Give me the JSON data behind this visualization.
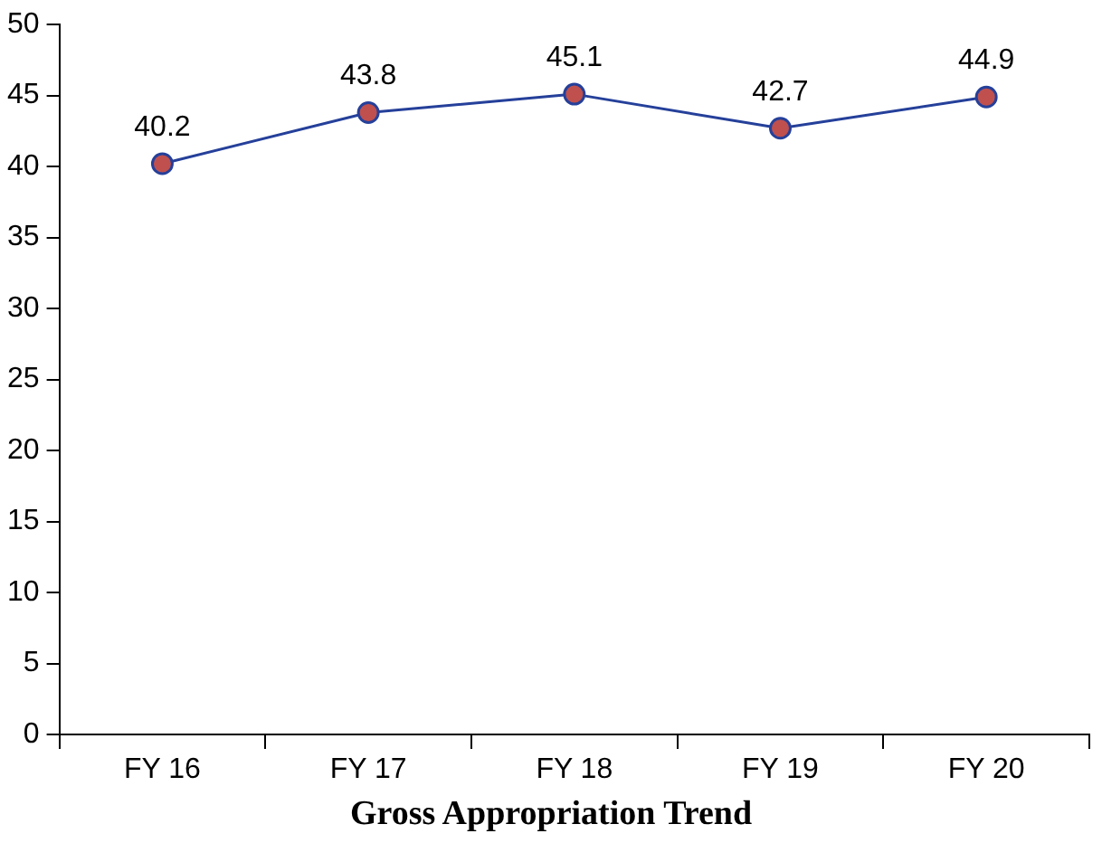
{
  "chart_data": {
    "type": "line",
    "title": "Gross Appropriation Trend",
    "categories": [
      "FY 16",
      "FY 17",
      "FY 18",
      "FY 19",
      "FY 20"
    ],
    "series": [
      {
        "color": "#25409a",
        "colors": [
          "#c0504d",
          "#c0504d",
          "#c0504d",
          "#c0504d",
          "#c0504d"
        ],
        "values": [
          40.2,
          43.8,
          45.1,
          42.7,
          44.9
        ]
      }
    ],
    "marker": "circle",
    "data_labels": true,
    "grid": false,
    "legend": false,
    "ylim": [
      0,
      50
    ],
    "yticks": [
      0,
      5,
      10,
      15,
      20,
      25,
      30,
      35,
      40,
      45,
      50
    ]
  }
}
